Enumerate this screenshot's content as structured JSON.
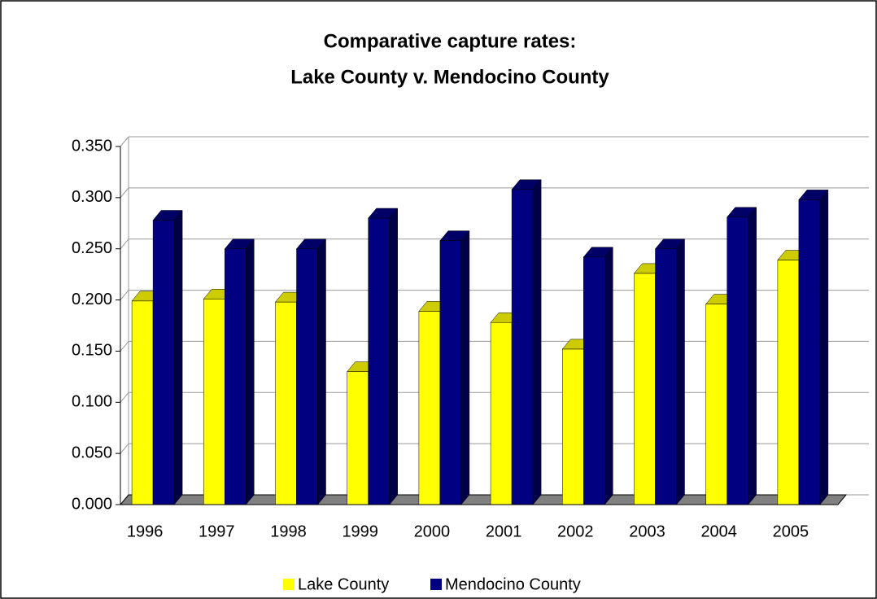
{
  "chart_data": {
    "type": "bar3d",
    "title": [
      "Comparative capture rates:",
      "Lake County v. Mendocino County"
    ],
    "categories": [
      "1996",
      "1997",
      "1998",
      "1999",
      "2000",
      "2001",
      "2002",
      "2003",
      "2004",
      "2005"
    ],
    "series": [
      {
        "name": "Lake County",
        "color": "#ffff00",
        "values": [
          0.199,
          0.201,
          0.198,
          0.13,
          0.189,
          0.178,
          0.152,
          0.226,
          0.196,
          0.239
        ]
      },
      {
        "name": "Mendocino County",
        "color": "#000080",
        "values": [
          0.278,
          0.25,
          0.25,
          0.28,
          0.258,
          0.308,
          0.242,
          0.25,
          0.281,
          0.298
        ]
      }
    ],
    "ylim": [
      0,
      0.35
    ],
    "yticks": [
      {
        "value": 0,
        "label": "0.000"
      },
      {
        "value": 0.05,
        "label": "0.050"
      },
      {
        "value": 0.1,
        "label": "0.100"
      },
      {
        "value": 0.15,
        "label": "0.150"
      },
      {
        "value": 0.2,
        "label": "0.200"
      },
      {
        "value": 0.25,
        "label": "0.250"
      },
      {
        "value": 0.3,
        "label": "0.300"
      },
      {
        "value": 0.35,
        "label": "0.350"
      }
    ],
    "grid": true,
    "legend": "bottom"
  }
}
